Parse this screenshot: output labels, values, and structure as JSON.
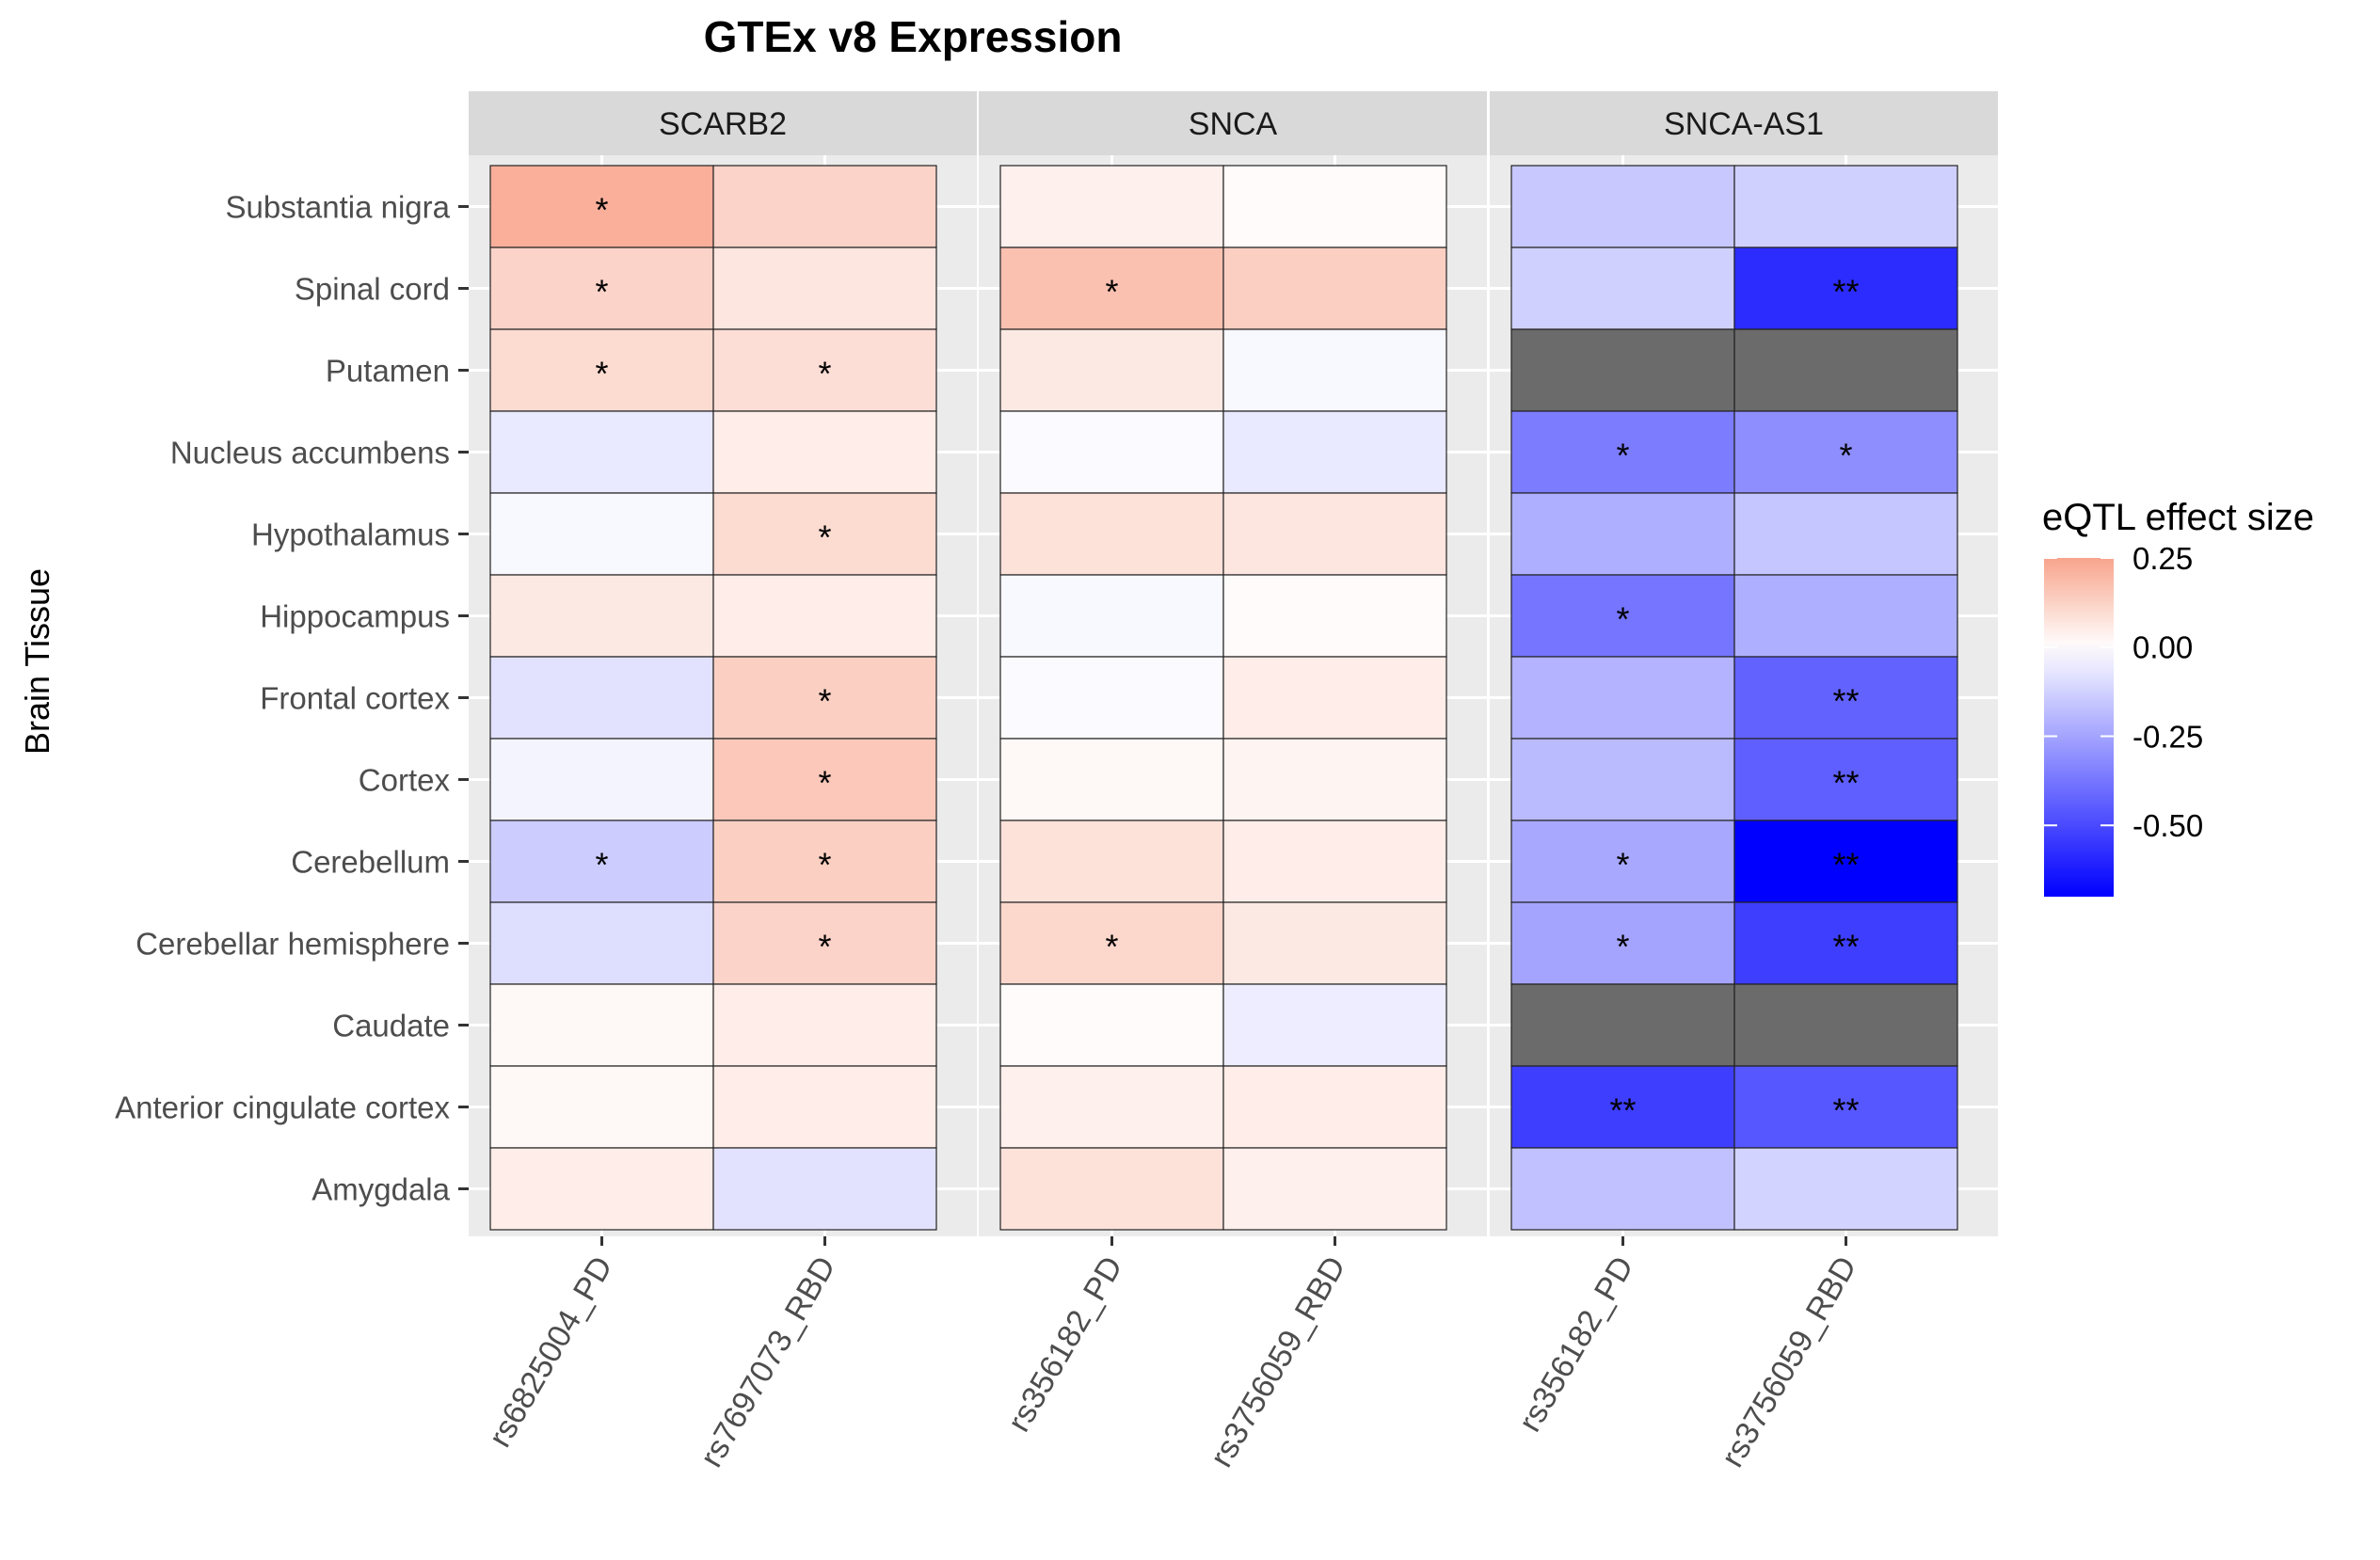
{
  "chart_data": {
    "type": "heatmap",
    "title": "GTEx v8 Expression",
    "ylabel": "Brain Tissue",
    "xlabel": "",
    "legend": {
      "title": "eQTL effect size",
      "position": "right",
      "ticks": [
        0.25,
        0.0,
        -0.25,
        -0.5
      ],
      "tick_labels": [
        "0.25",
        "0.00",
        "-0.25",
        "-0.50"
      ],
      "range": [
        -0.7,
        0.25
      ],
      "colors": {
        "high": "#f8a48c",
        "mid": "#ffffff",
        "low": "#0000ff",
        "na": "#6b6b6b"
      }
    },
    "rows": [
      "Substantia nigra",
      "Spinal cord",
      "Putamen",
      "Nucleus accumbens",
      "Hypothalamus",
      "Hippocampus",
      "Frontal cortex",
      "Cortex",
      "Cerebellum",
      "Cerebellar hemisphere",
      "Caudate",
      "Anterior cingulate cortex",
      "Amygdala"
    ],
    "panels": [
      {
        "gene": "SCARB2",
        "columns": [
          "rs6825004_PD",
          "rs7697073_RBD"
        ],
        "values": [
          [
            0.22,
            0.12
          ],
          [
            0.12,
            0.07
          ],
          [
            0.1,
            0.09
          ],
          [
            -0.06,
            0.05
          ],
          [
            -0.02,
            0.1
          ],
          [
            0.06,
            0.05
          ],
          [
            -0.08,
            0.13
          ],
          [
            -0.03,
            0.15
          ],
          [
            -0.14,
            0.13
          ],
          [
            -0.09,
            0.12
          ],
          [
            0.02,
            0.05
          ],
          [
            0.02,
            0.05
          ],
          [
            0.05,
            -0.08
          ]
        ],
        "significance": [
          [
            "*",
            ""
          ],
          [
            "*",
            ""
          ],
          [
            "*",
            "*"
          ],
          [
            "",
            ""
          ],
          [
            "",
            "*"
          ],
          [
            "",
            ""
          ],
          [
            "",
            "*"
          ],
          [
            "",
            "*"
          ],
          [
            "*",
            "*"
          ],
          [
            "",
            "*"
          ],
          [
            "",
            ""
          ],
          [
            "",
            ""
          ],
          [
            "",
            ""
          ]
        ]
      },
      {
        "gene": "SNCA",
        "columns": [
          "rs356182_PD",
          "rs3756059_RBD"
        ],
        "values": [
          [
            0.04,
            0.01
          ],
          [
            0.17,
            0.13
          ],
          [
            0.06,
            -0.02
          ],
          [
            -0.01,
            -0.06
          ],
          [
            0.08,
            0.07
          ],
          [
            -0.02,
            0.01
          ],
          [
            -0.01,
            0.05
          ],
          [
            0.02,
            0.03
          ],
          [
            0.08,
            0.05
          ],
          [
            0.11,
            0.06
          ],
          [
            0.01,
            -0.05
          ],
          [
            0.04,
            0.05
          ],
          [
            0.08,
            0.04
          ]
        ],
        "significance": [
          [
            "",
            ""
          ],
          [
            "*",
            ""
          ],
          [
            "",
            ""
          ],
          [
            "",
            ""
          ],
          [
            "",
            ""
          ],
          [
            "",
            ""
          ],
          [
            "",
            ""
          ],
          [
            "",
            ""
          ],
          [
            "",
            ""
          ],
          [
            "*",
            ""
          ],
          [
            "",
            ""
          ],
          [
            "",
            ""
          ],
          [
            "",
            ""
          ]
        ]
      },
      {
        "gene": "SNCA-AS1",
        "columns": [
          "rs356182_PD",
          "rs3756059_RBD"
        ],
        "values": [
          [
            -0.15,
            -0.13
          ],
          [
            -0.13,
            -0.58
          ],
          [
            null,
            null
          ],
          [
            -0.36,
            -0.31
          ],
          [
            -0.22,
            -0.16
          ],
          [
            -0.38,
            -0.22
          ],
          [
            -0.21,
            -0.43
          ],
          [
            -0.19,
            -0.44
          ],
          [
            -0.24,
            -0.72
          ],
          [
            -0.25,
            -0.53
          ],
          [
            null,
            null
          ],
          [
            -0.53,
            -0.46
          ],
          [
            -0.17,
            -0.12
          ]
        ],
        "significance": [
          [
            "",
            ""
          ],
          [
            "",
            "**"
          ],
          [
            "",
            ""
          ],
          [
            "*",
            "*"
          ],
          [
            "",
            ""
          ],
          [
            "*",
            ""
          ],
          [
            "",
            "**"
          ],
          [
            "",
            "**"
          ],
          [
            "*",
            "**"
          ],
          [
            "*",
            "**"
          ],
          [
            "",
            ""
          ],
          [
            "**",
            "**"
          ],
          [
            "",
            ""
          ]
        ]
      }
    ]
  }
}
